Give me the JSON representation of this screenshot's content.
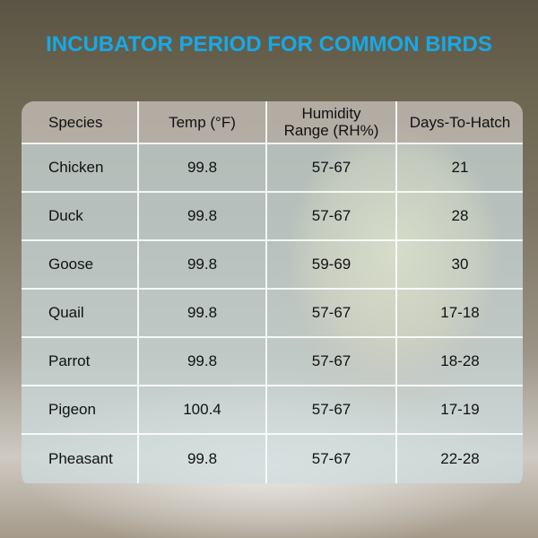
{
  "title": "INCUBATOR PERIOD FOR COMMON BIRDS",
  "colors": {
    "title": "#17a9e6"
  },
  "table": {
    "headers": [
      "Species",
      "Temp (°F)",
      "Humidity\nRange (RH%)",
      "Days-To-Hatch"
    ],
    "rows": [
      [
        "Chicken",
        "99.8",
        "57-67",
        "21"
      ],
      [
        "Duck",
        "99.8",
        "57-67",
        "28"
      ],
      [
        "Goose",
        "99.8",
        "59-69",
        "30"
      ],
      [
        "Quail",
        "99.8",
        "57-67",
        "17-18"
      ],
      [
        "Parrot",
        "99.8",
        "57-67",
        "18-28"
      ],
      [
        "Pigeon",
        "100.4",
        "57-67",
        "17-19"
      ],
      [
        "Pheasant",
        "99.8",
        "57-67",
        "22-28"
      ]
    ]
  }
}
